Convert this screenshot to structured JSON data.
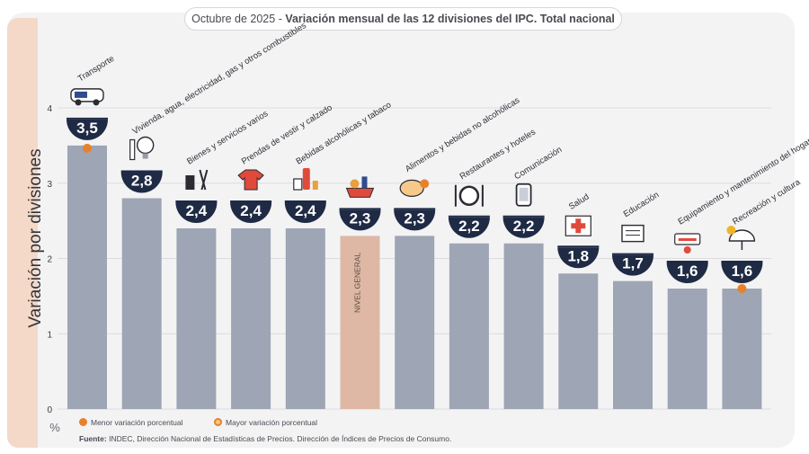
{
  "title": {
    "prefix": "Octubre de 2025 - ",
    "main": "Variación mensual de las 12 divisiones del IPC. Total nacional"
  },
  "legend": {
    "min_label": "Menor variación porcentual",
    "max_label": "Mayor variación porcentual",
    "min_color": "#e8822a",
    "max_color": "#e8822a"
  },
  "source": {
    "label": "Fuente:",
    "text": "INDEC, Dirección Nacional de Estadísticas de Precios. Dirección de Índices de Precios de Consumo."
  },
  "colors": {
    "bar": "#9ea5b5",
    "highlight_bar": "#deb8a4",
    "badge": "#1f2a44",
    "badge_text": "#ffffff",
    "marker": "#e8822a"
  },
  "chart_data": {
    "type": "bar",
    "ylabel": "Variación por divisiones",
    "yunit": "%",
    "ylim": [
      0,
      4
    ],
    "yticks": [
      "0",
      "1",
      "2",
      "3",
      "4"
    ],
    "grid": true,
    "categories": [
      {
        "label": "Transporte",
        "value": 3.5,
        "display": "3,5",
        "marker": "max",
        "icon": "car-icon",
        "highlight": false
      },
      {
        "label": "Vivienda, agua, electricidad, gas y otros combustibles",
        "value": 2.8,
        "display": "2,8",
        "icon": "lightbulb-icon",
        "highlight": false
      },
      {
        "label": "Bienes y servicios varios",
        "value": 2.4,
        "display": "2,4",
        "icon": "comb-icon",
        "highlight": false
      },
      {
        "label": "Prendas de vestir y calzado",
        "value": 2.4,
        "display": "2,4",
        "icon": "shirt-icon",
        "highlight": false
      },
      {
        "label": "Bebidas alcohólicas y tabaco",
        "value": 2.4,
        "display": "2,4",
        "icon": "bottle-icon",
        "highlight": false
      },
      {
        "label": "",
        "bar_text": "NIVEL GENERAL",
        "value": 2.3,
        "display": "2,3",
        "icon": "basket-icon",
        "highlight": true
      },
      {
        "label": "Alimentos y bebidas no alcohólicas",
        "value": 2.3,
        "display": "2,3",
        "icon": "food-icon",
        "highlight": false
      },
      {
        "label": "Restaurantes y hoteles",
        "value": 2.2,
        "display": "2,2",
        "icon": "cutlery-icon",
        "highlight": false
      },
      {
        "label": "Comunicación",
        "value": 2.2,
        "display": "2,2",
        "icon": "phone-icon",
        "highlight": false
      },
      {
        "label": "Salud",
        "value": 1.8,
        "display": "1,8",
        "icon": "medical-cross-icon",
        "highlight": false
      },
      {
        "label": "Educación",
        "value": 1.7,
        "display": "1,7",
        "icon": "notebook-icon",
        "highlight": false
      },
      {
        "label": "Equipamiento y mantenimiento del hogar",
        "value": 1.6,
        "display": "1,6",
        "icon": "air-conditioner-icon",
        "highlight": false
      },
      {
        "label": "Recreación y cultura",
        "value": 1.6,
        "display": "1,6",
        "marker": "min",
        "icon": "umbrella-icon",
        "highlight": false
      }
    ]
  }
}
